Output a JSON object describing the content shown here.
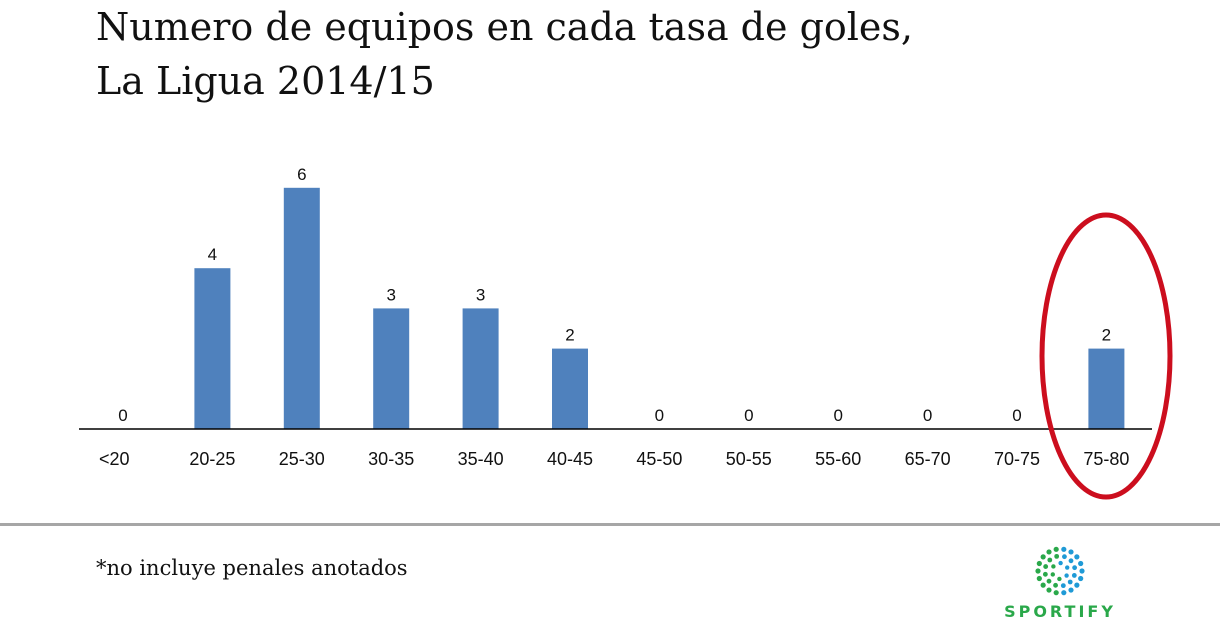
{
  "title": {
    "line1": "Numero de equipos en cada tasa de goles,",
    "line2": "La Ligua 2014/15"
  },
  "footnote": "*no incluye penales anotados",
  "logo": {
    "text": "SPORTIFY",
    "colors": [
      "#2aa84a",
      "#1f9ad6"
    ]
  },
  "highlight": {
    "category": "75-80",
    "color": "#cc0e1e"
  },
  "chart_data": {
    "type": "bar",
    "categories": [
      "<20",
      "20-25",
      "25-30",
      "30-35",
      "35-40",
      "40-45",
      "45-50",
      "50-55",
      "55-60",
      "65-70",
      "70-75",
      "75-80"
    ],
    "values": [
      0,
      4,
      6,
      3,
      3,
      2,
      0,
      0,
      0,
      0,
      0,
      2
    ],
    "title": "Numero de equipos en cada tasa de goles, La Ligua 2014/15",
    "xlabel": "",
    "ylabel": "",
    "ylim": [
      0,
      6
    ],
    "bar_color": "#4f81bd",
    "data_labels": true,
    "grid": false,
    "legend": "none"
  }
}
